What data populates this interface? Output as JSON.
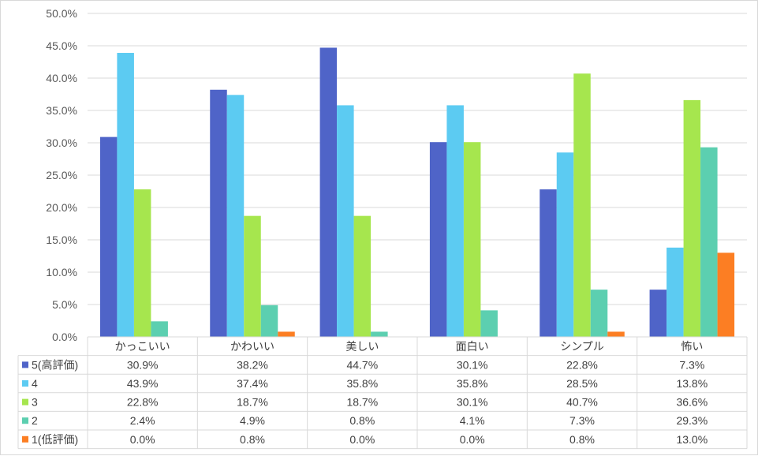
{
  "chart_data": {
    "type": "bar",
    "categories": [
      "かっこいい",
      "かわいい",
      "美しい",
      "面白い",
      "シンプル",
      "怖い"
    ],
    "series": [
      {
        "name": "5(高評価)",
        "color": "#4f64c8",
        "values": [
          30.9,
          38.2,
          44.7,
          30.1,
          22.8,
          7.3
        ],
        "labels": [
          "30.9%",
          "38.2%",
          "44.7%",
          "30.1%",
          "22.8%",
          "7.3%"
        ]
      },
      {
        "name": "4",
        "color": "#5ccbf2",
        "values": [
          43.9,
          37.4,
          35.8,
          35.8,
          28.5,
          13.8
        ],
        "labels": [
          "43.9%",
          "37.4%",
          "35.8%",
          "35.8%",
          "28.5%",
          "13.8%"
        ]
      },
      {
        "name": "3",
        "color": "#a6e64e",
        "values": [
          22.8,
          18.7,
          18.7,
          30.1,
          40.7,
          36.6
        ],
        "labels": [
          "22.8%",
          "18.7%",
          "18.7%",
          "30.1%",
          "40.7%",
          "36.6%"
        ]
      },
      {
        "name": "2",
        "color": "#5ccfb0",
        "values": [
          2.4,
          4.9,
          0.8,
          4.1,
          7.3,
          29.3
        ],
        "labels": [
          "2.4%",
          "4.9%",
          "0.8%",
          "4.1%",
          "7.3%",
          "29.3%"
        ]
      },
      {
        "name": "1(低評価)",
        "color": "#fc7e23",
        "values": [
          0.0,
          0.8,
          0.0,
          0.0,
          0.8,
          13.0
        ],
        "labels": [
          "0.0%",
          "0.8%",
          "0.0%",
          "0.0%",
          "0.8%",
          "13.0%"
        ]
      }
    ],
    "ylim": [
      0,
      50
    ],
    "yticks": [
      "0.0%",
      "5.0%",
      "10.0%",
      "15.0%",
      "20.0%",
      "25.0%",
      "30.0%",
      "35.0%",
      "40.0%",
      "45.0%",
      "50.0%"
    ],
    "grid": true,
    "legend": "data-table-left"
  }
}
